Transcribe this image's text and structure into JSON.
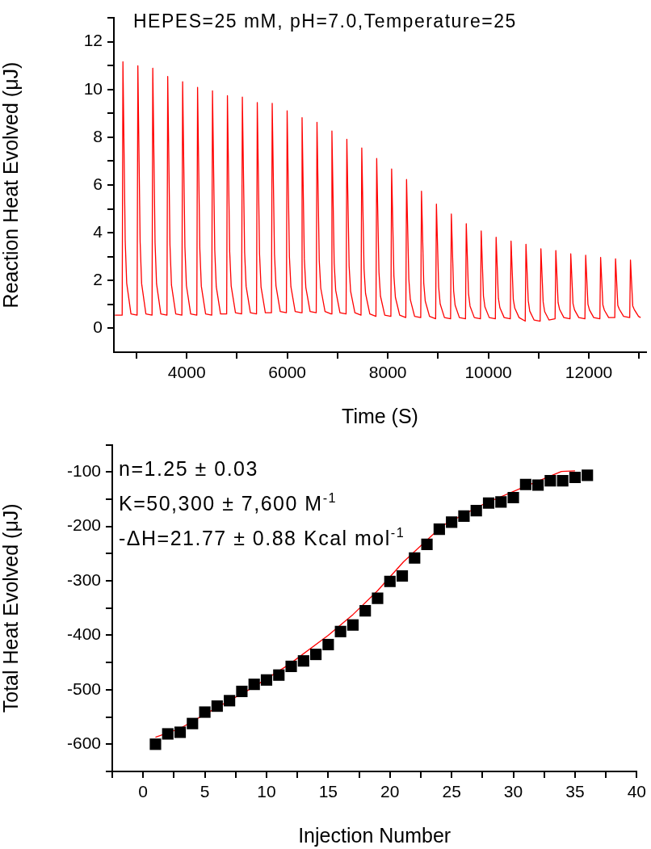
{
  "chart_data": [
    {
      "type": "line",
      "title": "HEPES=25 mM, pH=7.0,Temperature=25",
      "xlabel": "Time (S)",
      "ylabel": "Reaction Heat Evolved (μJ)",
      "color": "#ff0000",
      "marker": "none",
      "x": [
        2570,
        2715,
        2730,
        2775,
        2805,
        2890,
        3012,
        3027,
        3072,
        3102,
        3187,
        3309,
        3324,
        3369,
        3399,
        3484,
        3606,
        3621,
        3666,
        3696,
        3781,
        3903,
        3918,
        3963,
        3993,
        4078,
        4200,
        4215,
        4260,
        4290,
        4375,
        4497,
        4512,
        4557,
        4587,
        4672,
        4794,
        4809,
        4854,
        4884,
        4969,
        5091,
        5106,
        5151,
        5181,
        5266,
        5388,
        5403,
        5448,
        5478,
        5563,
        5685,
        5700,
        5745,
        5775,
        5860,
        5982,
        5997,
        6042,
        6072,
        6157,
        6279,
        6294,
        6339,
        6369,
        6454,
        6576,
        6591,
        6636,
        6666,
        6751,
        6873,
        6888,
        6933,
        6963,
        7048,
        7170,
        7185,
        7230,
        7260,
        7345,
        7467,
        7482,
        7527,
        7557,
        7642,
        7764,
        7779,
        7824,
        7854,
        7939,
        8061,
        8076,
        8121,
        8151,
        8236,
        8358,
        8373,
        8418,
        8448,
        8533,
        8655,
        8670,
        8715,
        8745,
        8830,
        8952,
        8967,
        9012,
        9042,
        9127,
        9249,
        9264,
        9309,
        9339,
        9424,
        9546,
        9561,
        9606,
        9636,
        9721,
        9843,
        9858,
        9903,
        9933,
        10018,
        10140,
        10155,
        10200,
        10230,
        10315,
        10437,
        10452,
        10497,
        10527,
        10612,
        10734,
        10749,
        10794,
        10824,
        10909,
        11031,
        11046,
        11091,
        11121,
        11206,
        11328,
        11343,
        11388,
        11418,
        11503,
        11625,
        11640,
        11685,
        11715,
        11800,
        11922,
        11937,
        11982,
        12012,
        12097,
        12219,
        12234,
        12279,
        12309,
        12394,
        12516,
        12531,
        12576,
        12606,
        12691,
        12813,
        12828,
        12873,
        12903,
        12988,
        13030
      ],
      "values": [
        0.55,
        0.55,
        11.16,
        3.68,
        1.89,
        0.6,
        0.55,
        10.99,
        3.63,
        1.87,
        0.6,
        0.55,
        10.89,
        3.59,
        1.86,
        0.6,
        0.55,
        10.54,
        3.48,
        1.81,
        0.6,
        0.55,
        10.32,
        3.41,
        1.79,
        0.6,
        0.55,
        10.09,
        3.33,
        1.76,
        0.6,
        0.55,
        9.94,
        3.28,
        1.74,
        0.6,
        0.6,
        9.74,
        3.21,
        1.77,
        0.65,
        0.6,
        9.68,
        3.19,
        1.76,
        0.65,
        0.6,
        9.45,
        3.12,
        1.73,
        0.65,
        0.65,
        9.42,
        3.11,
        1.78,
        0.7,
        0.65,
        9.11,
        3.01,
        1.74,
        0.7,
        0.65,
        8.82,
        2.91,
        1.71,
        0.7,
        0.65,
        8.62,
        2.84,
        1.68,
        0.7,
        0.6,
        8.26,
        2.73,
        1.59,
        0.65,
        0.6,
        7.91,
        2.61,
        1.55,
        0.65,
        0.55,
        7.55,
        2.49,
        1.46,
        0.6,
        0.5,
        7.11,
        2.35,
        1.35,
        0.55,
        0.5,
        6.67,
        2.2,
        1.3,
        0.55,
        0.45,
        6.23,
        2.06,
        1.2,
        0.5,
        0.45,
        5.74,
        1.89,
        1.14,
        0.5,
        0.4,
        5.2,
        1.72,
        1.02,
        0.45,
        0.4,
        4.79,
        1.58,
        0.97,
        0.45,
        0.4,
        4.38,
        1.45,
        0.93,
        0.45,
        0.4,
        4.08,
        1.35,
        0.89,
        0.45,
        0.4,
        3.81,
        1.26,
        0.86,
        0.45,
        0.4,
        3.65,
        1.2,
        0.84,
        0.45,
        0.3,
        3.52,
        1.16,
        0.72,
        0.35,
        0.3,
        3.33,
        1.1,
        0.7,
        0.35,
        0.4,
        3.26,
        1.08,
        0.79,
        0.45,
        0.4,
        3.12,
        1.03,
        0.77,
        0.45,
        0.4,
        3.06,
        1.01,
        0.77,
        0.45,
        0.4,
        2.97,
        0.98,
        0.76,
        0.45,
        0.45,
        2.91,
        0.96,
        0.8,
        0.5,
        0.45,
        2.86,
        0.94,
        0.79,
        0.5,
        0.45
      ],
      "xlim": [
        2550,
        13140
      ],
      "xticks": [
        {
          "value": 3000,
          "label": null
        },
        4000,
        {
          "value": 5000,
          "label": null
        },
        6000,
        {
          "value": 7000,
          "label": null
        },
        8000,
        {
          "value": 9000,
          "label": null
        },
        10000,
        {
          "value": 11000,
          "label": null
        },
        12000,
        {
          "value": 13000,
          "label": null
        }
      ],
      "ylim": [
        -1,
        13
      ],
      "yticks": [
        0,
        {
          "value": 1,
          "label": null
        },
        2,
        {
          "value": 3,
          "label": null
        },
        4,
        {
          "value": 5,
          "label": null
        },
        6,
        {
          "value": 7,
          "label": null
        },
        8,
        {
          "value": 9,
          "label": null
        },
        10,
        {
          "value": 11,
          "label": null
        },
        12,
        {
          "value": 13,
          "label": null
        }
      ]
    },
    {
      "type": "scatter",
      "xlabel": "Injection Number",
      "ylabel": "Total Heat Evolved (μJ)",
      "annotations": [
        "n=1.25 ± 0.03",
        "K=50,300 ± 7,600 M$^{-1}$",
        "-ΔH=21.77 ± 0.88 Kcal mol$^{-1}$"
      ],
      "series": [
        {
          "type": "scatter",
          "color": "#000000",
          "marker": "square",
          "x": [
            1,
            2,
            3,
            4,
            5,
            6,
            7,
            8,
            9,
            10,
            11,
            12,
            13,
            14,
            15,
            16,
            17,
            18,
            19,
            20,
            21,
            22,
            23,
            24,
            25,
            26,
            27,
            28,
            29,
            30,
            31,
            32,
            33,
            34,
            35,
            36
          ],
          "values": [
            -600,
            -581,
            -578,
            -562,
            -541,
            -530,
            -520,
            -503,
            -490,
            -482,
            -473,
            -457,
            -447,
            -435,
            -417,
            -393,
            -381,
            -355,
            -332,
            -301,
            -291,
            -258,
            -233,
            -205,
            -192,
            -181,
            -171,
            -157,
            -155,
            -147,
            -123,
            -124,
            -116,
            -116,
            -110,
            -106
          ]
        },
        {
          "type": "line",
          "color": "#ff0000",
          "marker": "none",
          "x": [
            1,
            3,
            5.4,
            8.8,
            11.8,
            15,
            17,
            19,
            21.1,
            24.3,
            27.5,
            30.7,
            33.9,
            35
          ],
          "values": [
            -587,
            -571,
            -540,
            -497,
            -454,
            -400,
            -362,
            -318,
            -265,
            -198,
            -160,
            -129,
            -99,
            -98
          ]
        }
      ],
      "xlim": [
        -2.5,
        40
      ],
      "xticks": [
        {
          "value": -2.5,
          "label": null
        },
        0,
        {
          "value": 2.5,
          "label": null
        },
        5,
        {
          "value": 7.5,
          "label": null
        },
        10,
        {
          "value": 12.5,
          "label": null
        },
        15,
        {
          "value": 17.5,
          "label": null
        },
        20,
        {
          "value": 22.5,
          "label": null
        },
        25,
        {
          "value": 27.5,
          "label": null
        },
        30,
        {
          "value": 32.5,
          "label": null
        },
        35,
        {
          "value": 37.5,
          "label": null
        },
        40
      ],
      "ylim": [
        -650,
        -50
      ],
      "yticks": [
        {
          "value": -650,
          "label": null
        },
        -600,
        {
          "value": -550,
          "label": null
        },
        -500,
        {
          "value": -450,
          "label": null
        },
        -400,
        {
          "value": -350,
          "label": null
        },
        -300,
        {
          "value": -250,
          "label": null
        },
        -200,
        {
          "value": -150,
          "label": null
        },
        -100,
        {
          "value": -50,
          "label": null
        }
      ]
    }
  ]
}
